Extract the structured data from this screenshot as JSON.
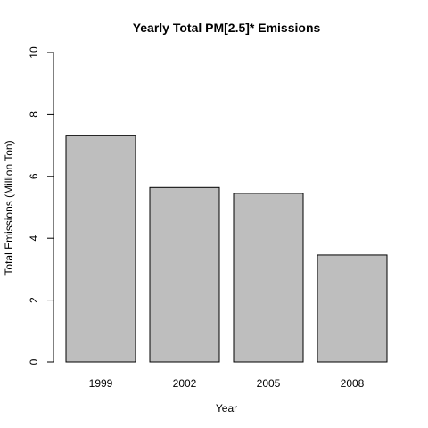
{
  "chart_data": {
    "type": "bar",
    "title": "Yearly Total PM[2.5]* Emissions",
    "xlabel": "Year",
    "ylabel": "Total Emissions (Million Ton)",
    "categories": [
      "1999",
      "2002",
      "2005",
      "2008"
    ],
    "values": [
      7.33,
      5.64,
      5.45,
      3.46
    ],
    "ylim": [
      0,
      10
    ],
    "yticks": [
      0,
      2,
      4,
      6,
      8,
      10
    ],
    "grid": false,
    "legend": "none",
    "colors": {
      "bar_fill": "#bebebe",
      "bar_stroke": "#000000",
      "axis": "#000000"
    }
  }
}
